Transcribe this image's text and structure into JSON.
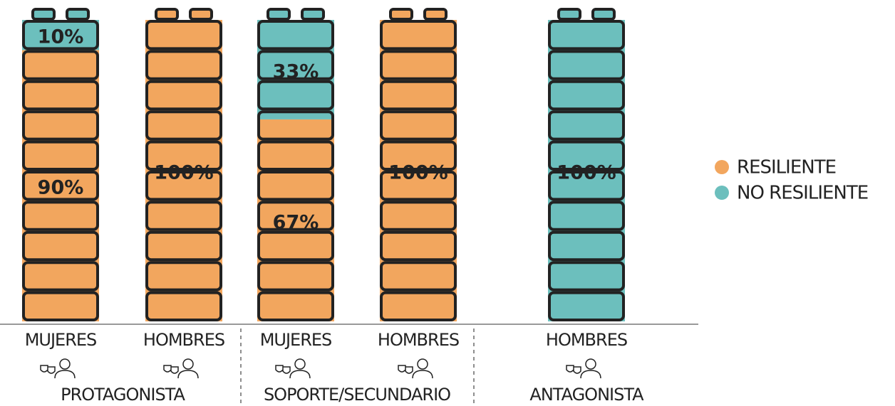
{
  "chart_data": {
    "type": "bar",
    "stacked": true,
    "groups": [
      {
        "name": "PROTAGONISTA",
        "categories": [
          "MUJERES",
          "HOMBRES"
        ]
      },
      {
        "name": "SOPORTE/SECUNDARIO",
        "categories": [
          "MUJERES",
          "HOMBRES"
        ]
      },
      {
        "name": "ANTAGONISTA",
        "categories": [
          "HOMBRES"
        ]
      }
    ],
    "series": [
      {
        "name": "RESILIENTE",
        "color": "#f2a65e",
        "values": [
          90,
          100,
          67,
          100,
          0
        ],
        "value_labels": [
          "90%",
          "100%",
          "67%",
          "100%",
          null
        ]
      },
      {
        "name": "NO RESILIENTE",
        "color": "#6cbfbd",
        "values": [
          10,
          0,
          33,
          0,
          100
        ],
        "value_labels": [
          "10%",
          null,
          "33%",
          null,
          "100%"
        ]
      }
    ],
    "ylim": [
      0,
      100
    ],
    "legend": "right"
  }
}
